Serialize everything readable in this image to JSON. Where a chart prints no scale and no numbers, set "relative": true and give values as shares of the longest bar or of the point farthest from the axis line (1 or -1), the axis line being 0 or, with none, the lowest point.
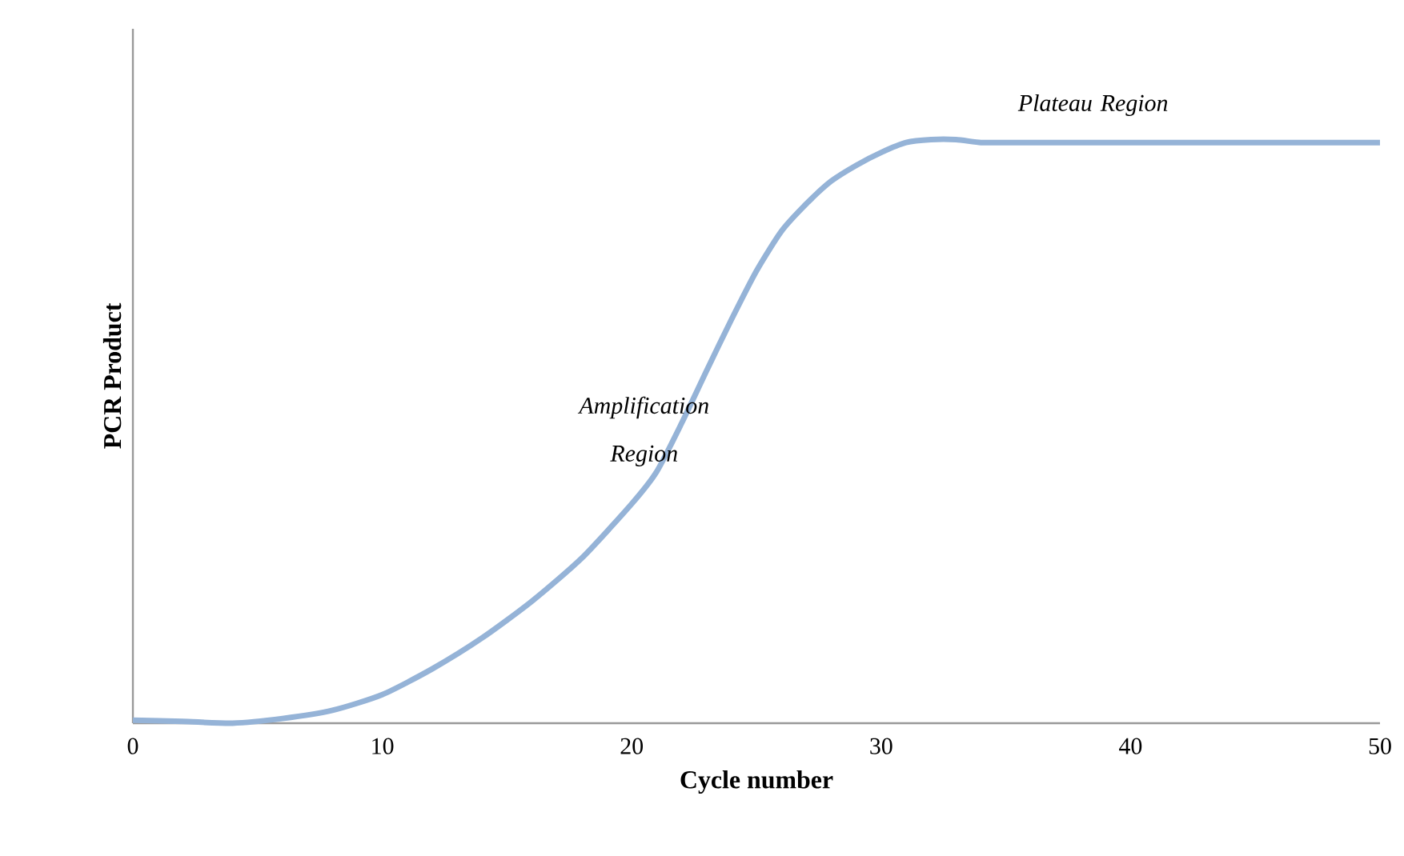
{
  "chart_data": {
    "type": "line",
    "relative": true,
    "xlabel": "Cycle number",
    "ylabel": "PCR Product",
    "xlim": [
      0,
      50
    ],
    "xticks": [
      0,
      10,
      20,
      30,
      40,
      50
    ],
    "x": [
      0,
      2,
      4,
      6,
      8,
      10,
      12,
      14,
      16,
      18,
      20,
      21,
      22,
      23,
      24,
      25,
      26,
      27,
      28,
      29,
      30,
      31,
      32,
      33,
      34,
      35,
      40,
      45,
      50
    ],
    "series": [
      {
        "color": "#95b3d7",
        "values": [
          0.005,
          0.003,
          0,
          0.008,
          0.022,
          0.049,
          0.093,
          0.146,
          0.209,
          0.283,
          0.376,
          0.431,
          0.514,
          0.604,
          0.692,
          0.775,
          0.843,
          0.89,
          0.929,
          0.956,
          0.978,
          0.995,
          1,
          1,
          0.995,
          0.995,
          0.995,
          0.995,
          0.995
        ]
      }
    ],
    "annotations": [
      "Amplification Region",
      "Plateau Region"
    ],
    "grid": false,
    "marker": "none",
    "line_style": "solid"
  }
}
